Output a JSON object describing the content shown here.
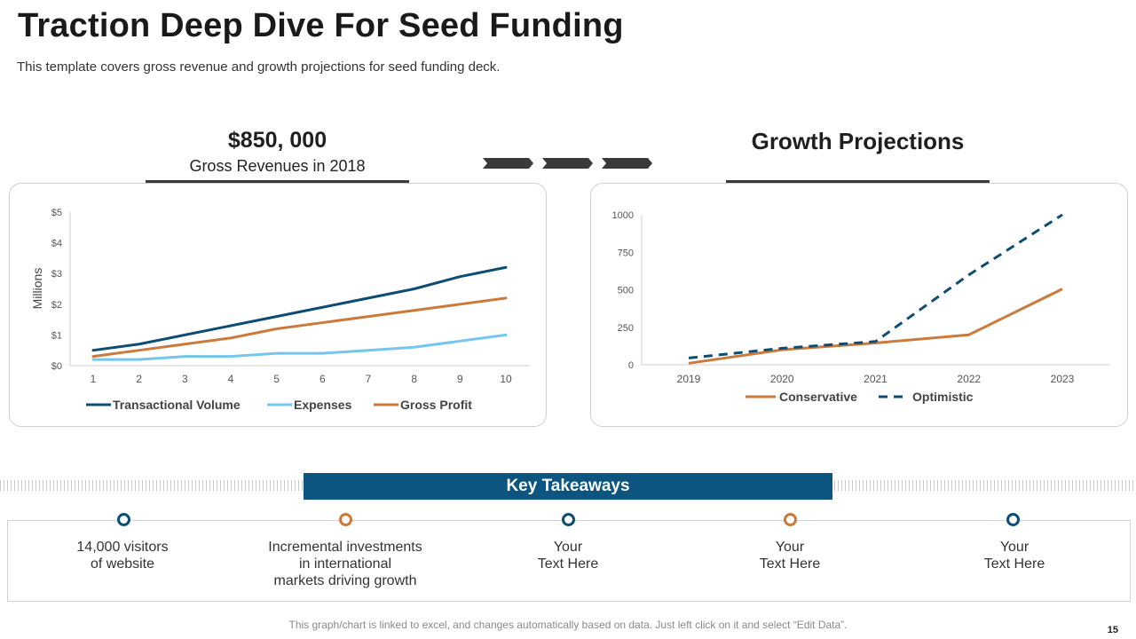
{
  "header": {
    "title": "Traction Deep Dive For Seed Funding",
    "subtitle": "This template covers gross revenue and growth projections for seed funding deck."
  },
  "stat": {
    "value": "$850, 000",
    "label": "Gross Revenues in 2018"
  },
  "growth": {
    "title": "Growth Projections"
  },
  "chart_data": [
    {
      "type": "line",
      "x": [
        1,
        2,
        3,
        4,
        5,
        6,
        7,
        8,
        9,
        10
      ],
      "ylabel": "Millions",
      "ylim": [
        0,
        5
      ],
      "yticks": [
        "$0",
        "$1",
        "$2",
        "$3",
        "$4",
        "$5"
      ],
      "grid": false,
      "legend": "bottom",
      "series": [
        {
          "name": "Transactional Volume",
          "color": "#0e4d73",
          "values": [
            0.5,
            0.7,
            1.0,
            1.3,
            1.6,
            1.9,
            2.2,
            2.5,
            2.9,
            3.2
          ]
        },
        {
          "name": "Expenses",
          "color": "#74c6ee",
          "values": [
            0.2,
            0.2,
            0.3,
            0.3,
            0.4,
            0.4,
            0.5,
            0.6,
            0.8,
            1.0
          ]
        },
        {
          "name": "Gross Profit",
          "color": "#cc7a3a",
          "values": [
            0.3,
            0.5,
            0.7,
            0.9,
            1.2,
            1.4,
            1.6,
            1.8,
            2.0,
            2.2
          ]
        }
      ]
    },
    {
      "type": "line",
      "categories": [
        "2019",
        "2020",
        "2021",
        "2022",
        "2023"
      ],
      "ylim": [
        0,
        1000
      ],
      "yticks": [
        "0",
        "250",
        "500",
        "750",
        "1000"
      ],
      "grid": false,
      "legend": "bottom",
      "series": [
        {
          "name": "Conservative",
          "color": "#cc7a3a",
          "style": "solid",
          "values": [
            10,
            100,
            145,
            200,
            505
          ]
        },
        {
          "name": "Optimistic",
          "color": "#0e4d73",
          "style": "dashed",
          "values": [
            45,
            110,
            155,
            600,
            1000
          ]
        }
      ]
    }
  ],
  "takeaways": {
    "title": "Key Takeaways",
    "items": [
      {
        "text": "14,000 visitors\nof website",
        "color": "#0e4d73"
      },
      {
        "text": "Incremental  investments\nin international\nmarkets driving growth",
        "color": "#cc7a3a"
      },
      {
        "text": "Your\nText Here",
        "color": "#0e4d73"
      },
      {
        "text": "Your\nText Here",
        "color": "#cc7a3a"
      },
      {
        "text": "Your\nText Here",
        "color": "#0e4d73"
      }
    ]
  },
  "footer": {
    "note": "This graph/chart is linked to excel, and changes automatically based on data. Just left click on it and select “Edit Data”.",
    "page": "15"
  }
}
